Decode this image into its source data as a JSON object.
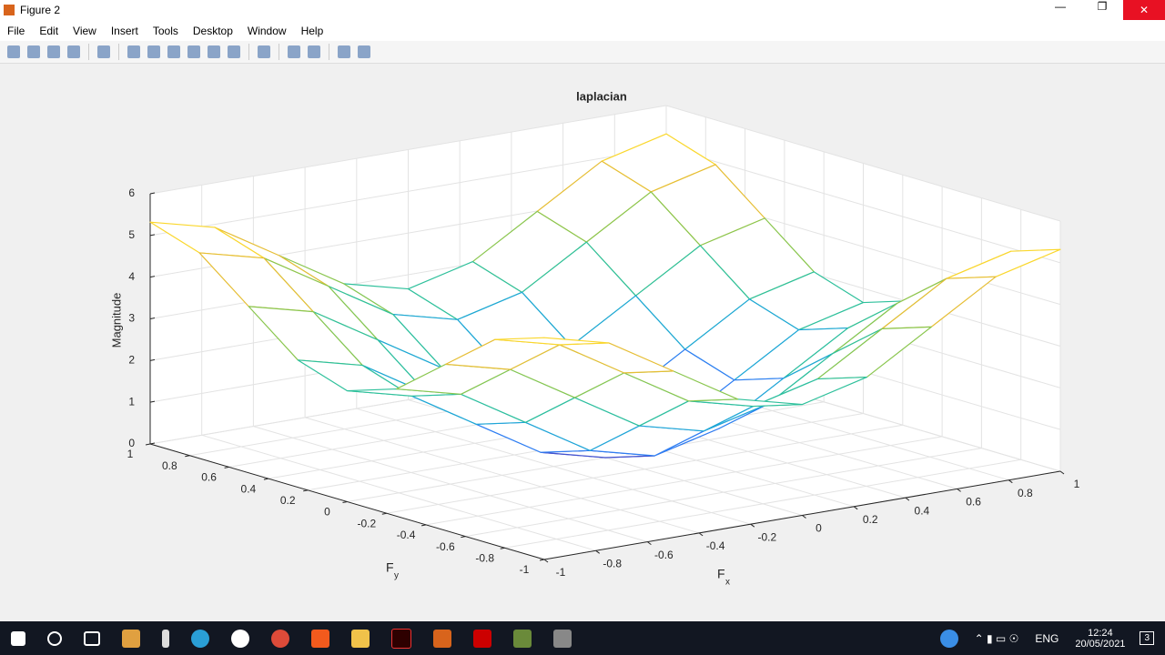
{
  "window": {
    "title": "Figure 2"
  },
  "menu": [
    "File",
    "Edit",
    "View",
    "Insert",
    "Tools",
    "Desktop",
    "Window",
    "Help"
  ],
  "chart_data": {
    "type": "mesh",
    "title": "laplacian",
    "xlabel": "F",
    "xlabel_subscript": "x",
    "ylabel": "F",
    "ylabel_subscript": "y",
    "zlabel": "Magnitude",
    "x": [
      -1,
      -0.75,
      -0.5,
      -0.25,
      0,
      0.25,
      0.5,
      0.75,
      1
    ],
    "y": [
      -1,
      -0.75,
      -0.5,
      -0.25,
      0,
      0.25,
      0.5,
      0.75,
      1
    ],
    "z": [
      [
        5.32,
        4.93,
        3.99,
        3.05,
        2.66,
        3.05,
        3.99,
        4.93,
        5.32
      ],
      [
        4.93,
        4.54,
        3.6,
        2.66,
        2.27,
        2.66,
        3.6,
        4.54,
        4.93
      ],
      [
        3.99,
        3.6,
        2.66,
        1.72,
        1.33,
        1.72,
        2.66,
        3.6,
        3.99
      ],
      [
        3.05,
        2.66,
        1.72,
        0.78,
        0.39,
        0.78,
        1.72,
        2.66,
        3.05
      ],
      [
        2.66,
        2.27,
        1.33,
        0.39,
        0,
        0.39,
        1.33,
        2.27,
        2.66
      ],
      [
        3.05,
        2.66,
        1.72,
        0.78,
        0.39,
        0.78,
        1.72,
        2.66,
        3.05
      ],
      [
        3.99,
        3.6,
        2.66,
        1.72,
        1.33,
        1.72,
        2.66,
        3.6,
        3.99
      ],
      [
        4.93,
        4.54,
        3.6,
        2.66,
        2.27,
        2.66,
        3.6,
        4.54,
        4.93
      ],
      [
        5.32,
        4.93,
        3.99,
        3.05,
        2.66,
        3.05,
        3.99,
        4.93,
        5.32
      ]
    ],
    "xlim": [
      -1,
      1
    ],
    "ylim": [
      -1,
      1
    ],
    "zlim": [
      0,
      6
    ],
    "xticks": [
      -1,
      -0.8,
      -0.6,
      -0.4,
      -0.2,
      0,
      0.2,
      0.4,
      0.6,
      0.8,
      1
    ],
    "yticks": [
      -1,
      -0.8,
      -0.6,
      -0.4,
      -0.2,
      0,
      0.2,
      0.4,
      0.6,
      0.8,
      1
    ],
    "zticks": [
      0,
      1,
      2,
      3,
      4,
      5,
      6
    ],
    "grid": true,
    "colormap": [
      "#3e26a8",
      "#4352ce",
      "#2f7ef2",
      "#1ea7d6",
      "#2ec09b",
      "#8ac64e",
      "#e6be35",
      "#fad72c",
      "#f9fb0e"
    ]
  },
  "taskbar": {
    "language": "ENG",
    "time": "12:24",
    "date": "20/05/2021",
    "notifications": 3
  }
}
